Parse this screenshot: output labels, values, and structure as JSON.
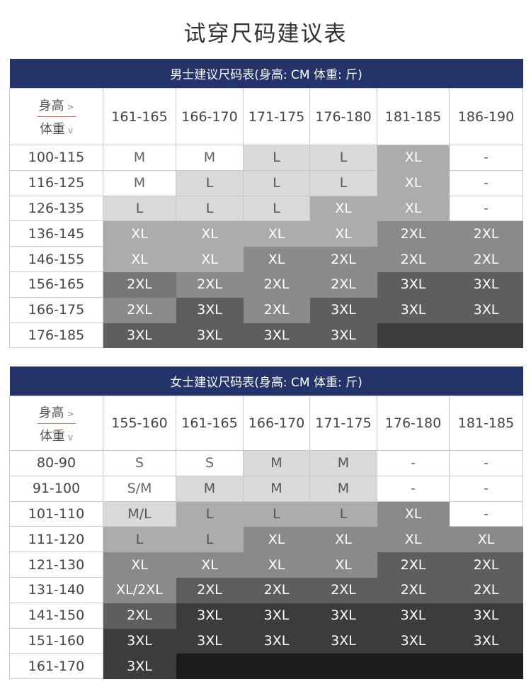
{
  "title": "试穿尺码建议表",
  "shades": [
    "#ffffff",
    "#d9d9d9",
    "#acacac",
    "#8a8a8a",
    "#777777",
    "#5e5e5e",
    "#3c3c3c",
    "#1c1c1c"
  ],
  "men": {
    "heading": "男士建议尺码表(身高: CM   体重: 斤)",
    "corner_height": "身高",
    "corner_weight": "体重",
    "corner_height_arrow": ">",
    "corner_weight_arrow": "v",
    "heights": [
      "161-165",
      "166-170",
      "171-175",
      "176-180",
      "181-185",
      "186-190"
    ],
    "rows": [
      {
        "weight": "100-115",
        "sizes": [
          "M",
          "M",
          "L",
          "L",
          "XL",
          "-"
        ],
        "shade": [
          0,
          0,
          1,
          1,
          2,
          0
        ]
      },
      {
        "weight": "116-125",
        "sizes": [
          "M",
          "L",
          "L",
          "L",
          "XL",
          "-"
        ],
        "shade": [
          0,
          1,
          1,
          1,
          2,
          0
        ]
      },
      {
        "weight": "126-135",
        "sizes": [
          "L",
          "L",
          "L",
          "XL",
          "XL",
          "-"
        ],
        "shade": [
          1,
          1,
          1,
          2,
          2,
          0
        ]
      },
      {
        "weight": "136-145",
        "sizes": [
          "XL",
          "XL",
          "XL",
          "XL",
          "2XL",
          "2XL"
        ],
        "shade": [
          2,
          2,
          2,
          2,
          3,
          3
        ]
      },
      {
        "weight": "146-155",
        "sizes": [
          "XL",
          "XL",
          "XL",
          "2XL",
          "2XL",
          "2XL"
        ],
        "shade": [
          2,
          2,
          3,
          3,
          3,
          3
        ]
      },
      {
        "weight": "156-165",
        "sizes": [
          "2XL",
          "2XL",
          "2XL",
          "2XL",
          "3XL",
          "3XL"
        ],
        "shade": [
          4,
          3,
          3,
          3,
          5,
          5
        ]
      },
      {
        "weight": "166-175",
        "sizes": [
          "2XL",
          "3XL",
          "2XL",
          "3XL",
          "3XL",
          "3XL"
        ],
        "shade": [
          3,
          5,
          3,
          5,
          5,
          5
        ]
      },
      {
        "weight": "176-185",
        "sizes": [
          "3XL",
          "3XL",
          "3XL",
          "3XL",
          "",
          ""
        ],
        "shade": [
          5,
          5,
          5,
          5,
          6,
          6
        ]
      }
    ]
  },
  "women": {
    "heading": "女士建议尺码表(身高: CM   体重: 斤)",
    "corner_height": "身高",
    "corner_weight": "体重",
    "corner_height_arrow": ">",
    "corner_weight_arrow": "v",
    "heights": [
      "155-160",
      "161-165",
      "166-170",
      "171-175",
      "176-180",
      "181-185"
    ],
    "rows": [
      {
        "weight": "80-90",
        "sizes": [
          "S",
          "S",
          "M",
          "M",
          "-",
          "-"
        ],
        "shade": [
          0,
          0,
          1,
          1,
          0,
          0
        ]
      },
      {
        "weight": "91-100",
        "sizes": [
          "S/M",
          "M",
          "M",
          "M",
          "-",
          "-"
        ],
        "shade": [
          0,
          1,
          1,
          1,
          0,
          0
        ]
      },
      {
        "weight": "101-110",
        "sizes": [
          "M/L",
          "L",
          "L",
          "L",
          "XL",
          "-"
        ],
        "shade": [
          1,
          2,
          2,
          2,
          3,
          0
        ]
      },
      {
        "weight": "111-120",
        "sizes": [
          "L",
          "L",
          "XL",
          "XL",
          "XL",
          "XL"
        ],
        "shade": [
          2,
          2,
          3,
          3,
          3,
          3
        ]
      },
      {
        "weight": "121-130",
        "sizes": [
          "XL",
          "XL",
          "XL",
          "XL",
          "2XL",
          "2XL"
        ],
        "shade": [
          3,
          3,
          3,
          3,
          5,
          5
        ]
      },
      {
        "weight": "131-140",
        "sizes": [
          "XL/2XL",
          "2XL",
          "2XL",
          "2XL",
          "2XL",
          "2XL"
        ],
        "shade": [
          3,
          5,
          5,
          5,
          5,
          5
        ]
      },
      {
        "weight": "141-150",
        "sizes": [
          "2XL",
          "3XL",
          "3XL",
          "3XL",
          "3XL",
          "3XL"
        ],
        "shade": [
          5,
          6,
          6,
          6,
          6,
          6
        ]
      },
      {
        "weight": "151-160",
        "sizes": [
          "3XL",
          "3XL",
          "3XL",
          "3XL",
          "3XL",
          "3XL"
        ],
        "shade": [
          6,
          6,
          6,
          6,
          6,
          6
        ]
      },
      {
        "weight": "161-170",
        "sizes": [
          "3XL",
          "",
          "",
          "",
          "",
          ""
        ],
        "shade": [
          6,
          7,
          7,
          7,
          7,
          7
        ]
      }
    ]
  }
}
